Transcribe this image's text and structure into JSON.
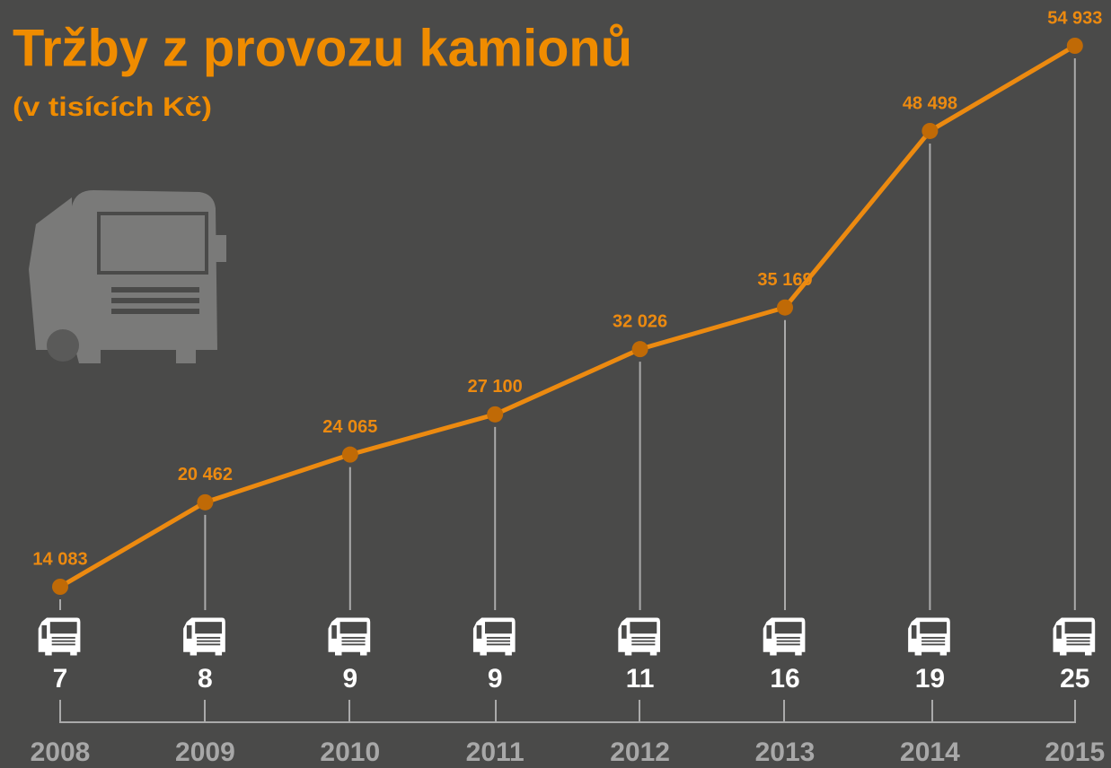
{
  "chart_data": {
    "type": "line",
    "title": "Tržby z provozu kamionů",
    "subtitle": "(v tisících Kč)",
    "categories": [
      "2008",
      "2009",
      "2010",
      "2011",
      "2012",
      "2013",
      "2014",
      "2015"
    ],
    "values": [
      14083,
      20462,
      24065,
      27100,
      32026,
      35169,
      48498,
      54933
    ],
    "value_labels": [
      "14 083",
      "20 462",
      "24 065",
      "27 100",
      "32 026",
      "35 169",
      "48 498",
      "54 933"
    ],
    "trucks": [
      7,
      8,
      9,
      9,
      11,
      16,
      19,
      25
    ],
    "color": "#ec8a10"
  }
}
